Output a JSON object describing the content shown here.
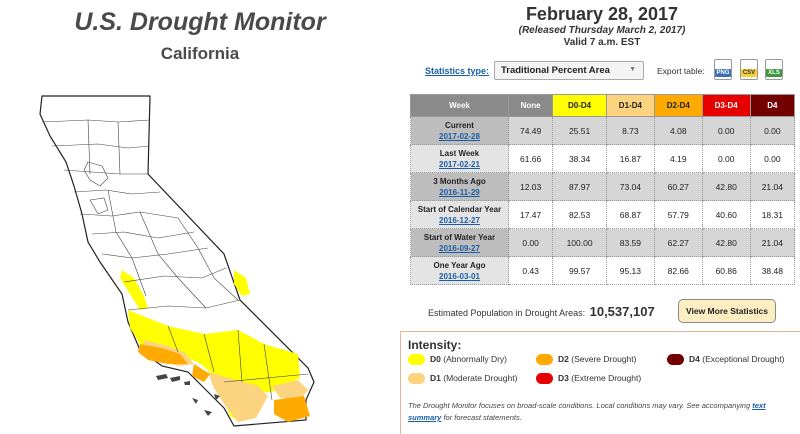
{
  "header": {
    "title": "U.S. Drought Monitor",
    "region": "California",
    "date": "February 28, 2017",
    "released": "(Released Thursday March 2, 2017)",
    "valid": "Valid 7 a.m. EST"
  },
  "controls": {
    "stats_label": "Statistics type:",
    "stats_value": "Traditional Percent Area",
    "export_label": "Export table:",
    "export_png": "PNG",
    "export_csv": "CSV",
    "export_xls": "XLS"
  },
  "colors": {
    "none": "#7f7f7f",
    "d0": "#ffff00",
    "d1": "#fcd37f",
    "d2": "#ffaa00",
    "d3": "#e60000",
    "d4": "#730000"
  },
  "table": {
    "headers": [
      "Week",
      "None",
      "D0-D4",
      "D1-D4",
      "D2-D4",
      "D3-D4",
      "D4"
    ],
    "rows": [
      {
        "label": "Current",
        "date": "2017-02-28",
        "values": [
          "74.49",
          "25.51",
          "8.73",
          "4.08",
          "0.00",
          "0.00"
        ]
      },
      {
        "label": "Last Week",
        "date": "2017-02-21",
        "values": [
          "61.66",
          "38.34",
          "16.87",
          "4.19",
          "0.00",
          "0.00"
        ]
      },
      {
        "label": "3 Months Ago",
        "date": "2016-11-29",
        "values": [
          "12.03",
          "87.97",
          "73.04",
          "60.27",
          "42.80",
          "21.04"
        ]
      },
      {
        "label": "Start of Calendar Year",
        "date": "2016-12-27",
        "values": [
          "17.47",
          "82.53",
          "68.87",
          "57.79",
          "40.60",
          "18.31"
        ]
      },
      {
        "label": "Start of Water Year",
        "date": "2016-09-27",
        "values": [
          "0.00",
          "100.00",
          "83.59",
          "62.27",
          "42.80",
          "21.04"
        ]
      },
      {
        "label": "One Year Ago",
        "date": "2016-03-01",
        "values": [
          "0.43",
          "99.57",
          "95.13",
          "82.66",
          "60.86",
          "38.48"
        ]
      }
    ]
  },
  "population": {
    "label": "Estimated Population in Drought Areas:",
    "value": "10,537,107"
  },
  "more_button": "View More Statistics",
  "legend": {
    "title": "Intensity:",
    "items": [
      {
        "code": "D0",
        "text": "(Abnormally Dry)"
      },
      {
        "code": "D1",
        "text": "(Moderate Drought)"
      },
      {
        "code": "D2",
        "text": "(Severe Drought)"
      },
      {
        "code": "D3",
        "text": "(Extreme Drought)"
      },
      {
        "code": "D4",
        "text": "(Exceptional Drought)"
      }
    ],
    "note_before": "The Drought Monitor focuses on broad-scale conditions. Local conditions may vary. See accompanying",
    "note_link": "text summary",
    "note_after": "for forecast statements."
  }
}
